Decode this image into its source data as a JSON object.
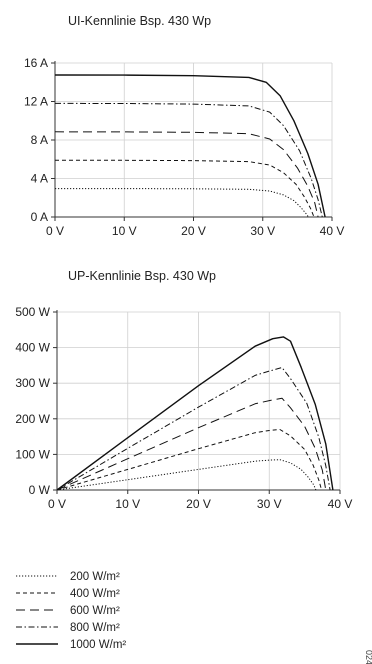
{
  "chart_data": [
    {
      "type": "line",
      "title": "UI-Kennlinie Bsp. 430 Wp",
      "xlabel": "",
      "ylabel": "",
      "xlim": [
        0,
        40
      ],
      "ylim": [
        0,
        16
      ],
      "x_ticks": [
        0,
        10,
        20,
        30,
        40
      ],
      "y_ticks": [
        0,
        4,
        8,
        12,
        16
      ],
      "x_tick_labels": [
        "0 V",
        "10 V",
        "20 V",
        "30 V",
        "40 V"
      ],
      "y_tick_labels": [
        "0 A",
        "4 A",
        "8 A",
        "12 A",
        "16 A"
      ],
      "grid": true,
      "series": [
        {
          "name": "200 W/m²",
          "style": "dotted",
          "points": [
            [
              0,
              2.95
            ],
            [
              10,
              2.95
            ],
            [
              20,
              2.93
            ],
            [
              28,
              2.88
            ],
            [
              31,
              2.7
            ],
            [
              33,
              2.3
            ],
            [
              34.5,
              1.7
            ],
            [
              35.5,
              1.0
            ],
            [
              36.2,
              0.4
            ],
            [
              36.6,
              0
            ]
          ]
        },
        {
          "name": "400 W/m²",
          "style": "dashed-short",
          "points": [
            [
              0,
              5.9
            ],
            [
              10,
              5.89
            ],
            [
              20,
              5.86
            ],
            [
              28,
              5.76
            ],
            [
              31,
              5.4
            ],
            [
              33,
              4.6
            ],
            [
              34.8,
              3.4
            ],
            [
              36,
              2.1
            ],
            [
              36.9,
              0.9
            ],
            [
              37.4,
              0
            ]
          ]
        },
        {
          "name": "600 W/m²",
          "style": "dashed-long",
          "points": [
            [
              0,
              8.85
            ],
            [
              10,
              8.84
            ],
            [
              20,
              8.8
            ],
            [
              28,
              8.65
            ],
            [
              31,
              8.1
            ],
            [
              33,
              7.0
            ],
            [
              35,
              5.1
            ],
            [
              36.5,
              3.2
            ],
            [
              37.5,
              1.5
            ],
            [
              38,
              0
            ]
          ]
        },
        {
          "name": "800 W/m²",
          "style": "dash-dot",
          "points": [
            [
              0,
              11.8
            ],
            [
              10,
              11.79
            ],
            [
              20,
              11.73
            ],
            [
              28,
              11.54
            ],
            [
              31,
              10.9
            ],
            [
              33,
              9.5
            ],
            [
              35.3,
              6.9
            ],
            [
              37,
              4.0
            ],
            [
              38,
              1.8
            ],
            [
              38.6,
              0
            ]
          ]
        },
        {
          "name": "1000 W/m²",
          "style": "solid",
          "points": [
            [
              0,
              14.75
            ],
            [
              10,
              14.74
            ],
            [
              20,
              14.68
            ],
            [
              28,
              14.5
            ],
            [
              30.5,
              14.0
            ],
            [
              32.5,
              12.6
            ],
            [
              34.5,
              10.0
            ],
            [
              36.5,
              6.6
            ],
            [
              38,
              3.4
            ],
            [
              39,
              0
            ]
          ]
        }
      ]
    },
    {
      "type": "line",
      "title": "UP-Kennlinie Bsp. 430 Wp",
      "xlabel": "",
      "ylabel": "",
      "xlim": [
        0,
        40
      ],
      "ylim": [
        0,
        500
      ],
      "x_ticks": [
        0,
        10,
        20,
        30,
        40
      ],
      "y_ticks": [
        0,
        100,
        200,
        300,
        400,
        500
      ],
      "x_tick_labels": [
        "0 V",
        "10 V",
        "20 V",
        "30 V",
        "40 V"
      ],
      "y_tick_labels": [
        "0 W",
        "100 W",
        "200 W",
        "300 W",
        "400 W",
        "500 W"
      ],
      "grid": true,
      "series": [
        {
          "name": "200 W/m²",
          "style": "dotted",
          "points": [
            [
              0,
              0
            ],
            [
              10,
              29
            ],
            [
              20,
              58
            ],
            [
              28,
              81
            ],
            [
              30,
              84
            ],
            [
              31.5,
              85
            ],
            [
              33,
              76
            ],
            [
              34.5,
              58
            ],
            [
              35.5,
              36
            ],
            [
              36.3,
              14
            ],
            [
              36.6,
              0
            ]
          ]
        },
        {
          "name": "400 W/m²",
          "style": "dashed-short",
          "points": [
            [
              0,
              0
            ],
            [
              10,
              58
            ],
            [
              20,
              116
            ],
            [
              28,
              161
            ],
            [
              30,
              167
            ],
            [
              31.5,
              170
            ],
            [
              33,
              152
            ],
            [
              35,
              114
            ],
            [
              36.2,
              70
            ],
            [
              37,
              28
            ],
            [
              37.4,
              0
            ]
          ]
        },
        {
          "name": "600 W/m²",
          "style": "dashed-long",
          "points": [
            [
              0,
              0
            ],
            [
              10,
              88
            ],
            [
              20,
              175
            ],
            [
              28,
              242
            ],
            [
              30,
              251
            ],
            [
              31.8,
              258
            ],
            [
              33,
              231
            ],
            [
              35,
              179
            ],
            [
              36.5,
              117
            ],
            [
              37.5,
              56
            ],
            [
              38,
              0
            ]
          ]
        },
        {
          "name": "800 W/m²",
          "style": "dash-dot",
          "points": [
            [
              0,
              0
            ],
            [
              10,
              117
            ],
            [
              20,
              233
            ],
            [
              28,
              322
            ],
            [
              30,
              334
            ],
            [
              31.8,
              344
            ],
            [
              33,
              313
            ],
            [
              35.3,
              244
            ],
            [
              37,
              148
            ],
            [
              38,
              68
            ],
            [
              38.6,
              0
            ]
          ]
        },
        {
          "name": "1000 W/m²",
          "style": "solid",
          "points": [
            [
              0,
              0
            ],
            [
              10,
              147
            ],
            [
              20,
              293
            ],
            [
              28,
              404
            ],
            [
              30.5,
              425
            ],
            [
              32,
              430
            ],
            [
              33,
              418
            ],
            [
              34.5,
              345
            ],
            [
              36.5,
              241
            ],
            [
              38,
              129
            ],
            [
              39,
              0
            ]
          ]
        }
      ]
    }
  ],
  "legend": {
    "placement": "bottom-left",
    "items": [
      {
        "label": "200 W/m²",
        "style": "dotted"
      },
      {
        "label": "400 W/m²",
        "style": "dashed-short"
      },
      {
        "label": "600 W/m²",
        "style": "dashed-long"
      },
      {
        "label": "800 W/m²",
        "style": "dash-dot"
      },
      {
        "label": "1000 W/m²",
        "style": "solid"
      }
    ]
  },
  "corner_code": "024"
}
